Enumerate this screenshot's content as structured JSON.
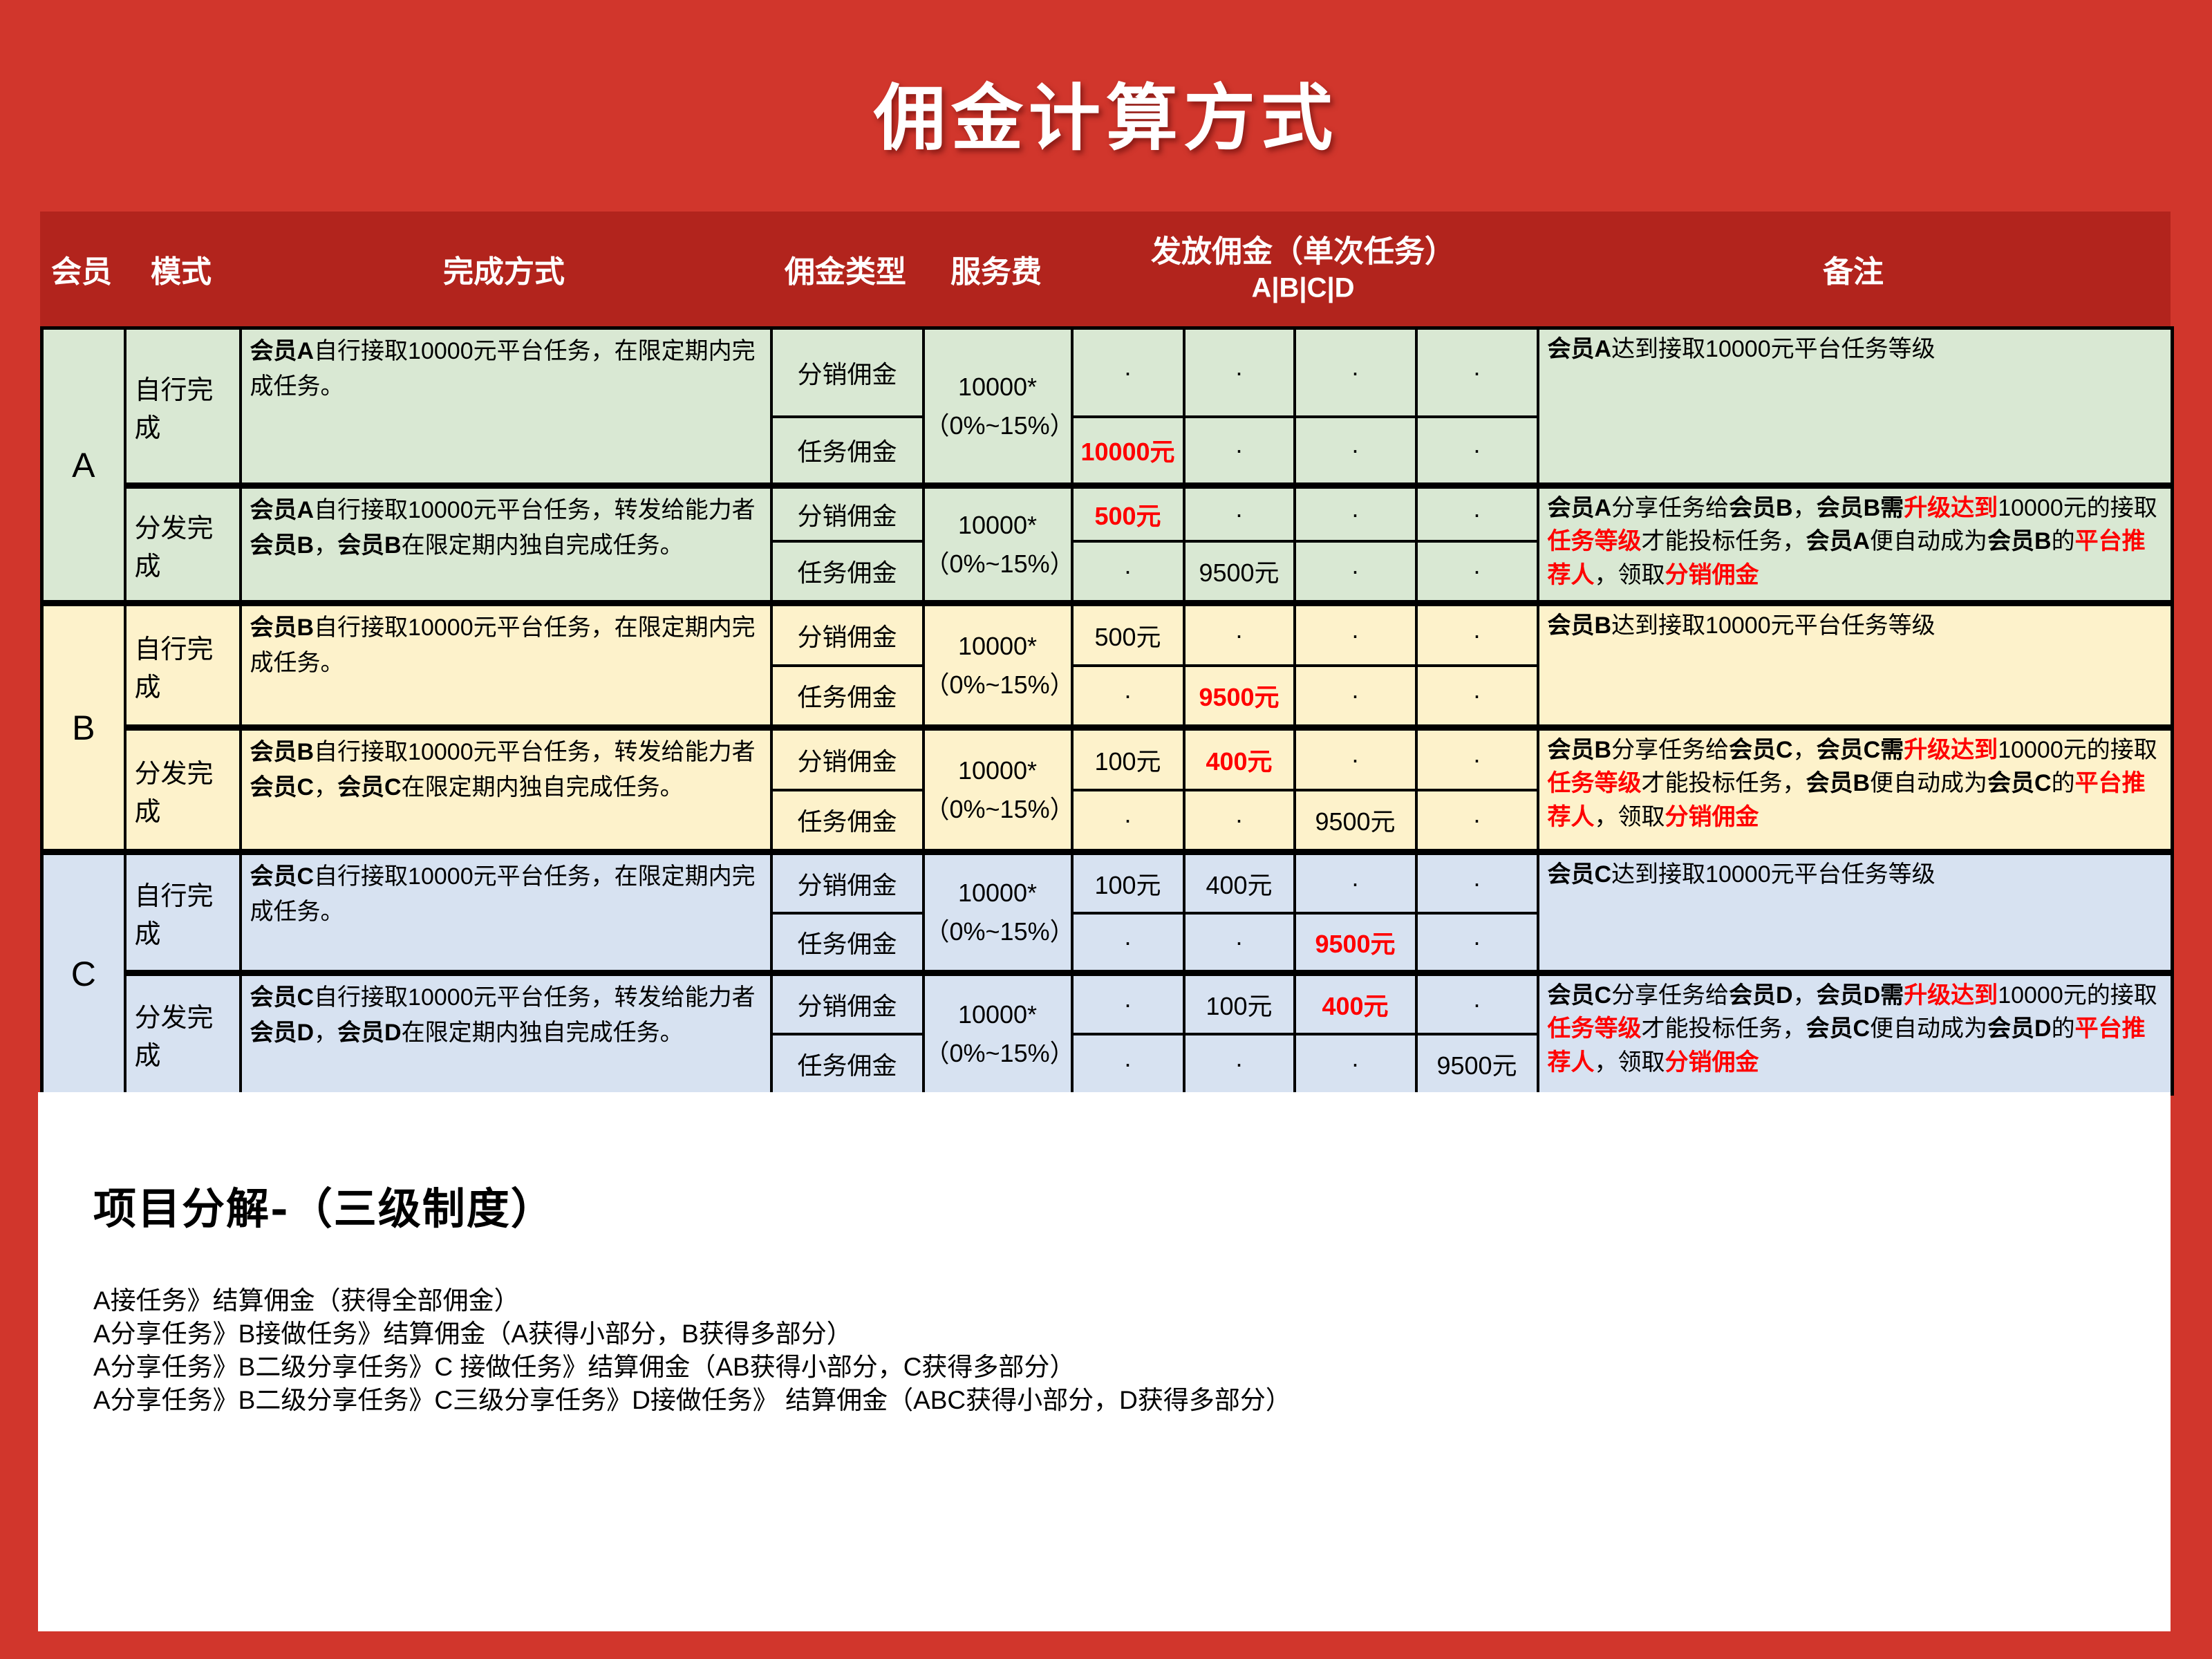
{
  "title": "佣金计算方式",
  "colors": {
    "page_bg": "#d1362c",
    "header_band": "#b2241d",
    "section_a": "#d9e8d3",
    "section_b": "#fdf2cb",
    "section_c": "#d7e2f1",
    "highlight": "#ff0000",
    "panel_bg": "#ffffff",
    "border": "#000000",
    "header_text": "#ffffff"
  },
  "header": {
    "member": "会员",
    "mode": "模式",
    "method": "完成方式",
    "ctype": "佣金类型",
    "fee": "服务费",
    "payout_line1": "发放佣金（单次任务）",
    "payout_line2": "A|B|C|D",
    "remark": "备注"
  },
  "sections": [
    {
      "member": "A",
      "blocks": [
        {
          "mode": "自行完成",
          "desc": [
            {
              "t": "会员A",
              "b": 1
            },
            {
              "t": "自行接取10000元平台任务，在限定期内完成任务。"
            }
          ],
          "fee": "10000*\n（0%~15%）",
          "rows": [
            {
              "ctype": "分销佣金",
              "vals": [
                [
                  {
                    "t": "·"
                  }
                ],
                [
                  {
                    "t": "·"
                  }
                ],
                [
                  {
                    "t": "·"
                  }
                ],
                [
                  {
                    "t": "·"
                  }
                ]
              ]
            },
            {
              "ctype": "任务佣金",
              "vals": [
                [
                  {
                    "t": "10000元",
                    "r": 1
                  }
                ],
                [
                  {
                    "t": "·"
                  }
                ],
                [
                  {
                    "t": "·"
                  }
                ],
                [
                  {
                    "t": "·"
                  }
                ]
              ]
            }
          ],
          "remark": [
            {
              "t": "会员A",
              "b": 1
            },
            {
              "t": "达到接取10000元平台任务等级"
            }
          ]
        },
        {
          "mode": "分发完成",
          "desc": [
            {
              "t": "会员A",
              "b": 1
            },
            {
              "t": "自行接取10000元平台任务，转发给能力者"
            },
            {
              "t": "会员B",
              "b": 1
            },
            {
              "t": "，"
            },
            {
              "t": "会员B",
              "b": 1
            },
            {
              "t": "在限定期内独自完成任务。"
            }
          ],
          "fee": "10000*\n（0%~15%）",
          "rows": [
            {
              "ctype": "分销佣金",
              "vals": [
                [
                  {
                    "t": "500元",
                    "r": 1
                  }
                ],
                [
                  {
                    "t": "·"
                  }
                ],
                [
                  {
                    "t": "·"
                  }
                ],
                [
                  {
                    "t": "·"
                  }
                ]
              ]
            },
            {
              "ctype": "任务佣金",
              "vals": [
                [
                  {
                    "t": "·"
                  }
                ],
                [
                  {
                    "t": "9500元"
                  }
                ],
                [
                  {
                    "t": "·"
                  }
                ],
                [
                  {
                    "t": "·"
                  }
                ]
              ]
            }
          ],
          "remark": [
            {
              "t": "会员A",
              "b": 1
            },
            {
              "t": "分享任务给"
            },
            {
              "t": "会员B",
              "b": 1
            },
            {
              "t": "，"
            },
            {
              "t": "会员B需",
              "b": 1
            },
            {
              "t": "升级达到",
              "b": 1,
              "r": 1
            },
            {
              "t": "10000元的接取"
            },
            {
              "t": "任务等级",
              "b": 1,
              "r": 1
            },
            {
              "t": "才能投标任务，"
            },
            {
              "t": "会员A",
              "b": 1
            },
            {
              "t": "便自动成为"
            },
            {
              "t": "会员B",
              "b": 1
            },
            {
              "t": "的"
            },
            {
              "t": "平台推荐人",
              "b": 1,
              "r": 1
            },
            {
              "t": "，领取"
            },
            {
              "t": "分销佣金",
              "b": 1,
              "r": 1
            }
          ]
        }
      ]
    },
    {
      "member": "B",
      "blocks": [
        {
          "mode": "自行完成",
          "desc": [
            {
              "t": "会员B",
              "b": 1
            },
            {
              "t": "自行接取10000元平台任务，在限定期内完成任务。"
            }
          ],
          "fee": "10000*\n（0%~15%）",
          "rows": [
            {
              "ctype": "分销佣金",
              "vals": [
                [
                  {
                    "t": "500元"
                  }
                ],
                [
                  {
                    "t": "·"
                  }
                ],
                [
                  {
                    "t": "·"
                  }
                ],
                [
                  {
                    "t": "·"
                  }
                ]
              ]
            },
            {
              "ctype": "任务佣金",
              "vals": [
                [
                  {
                    "t": "·"
                  }
                ],
                [
                  {
                    "t": "9500元",
                    "r": 1
                  }
                ],
                [
                  {
                    "t": "·"
                  }
                ],
                [
                  {
                    "t": "·"
                  }
                ]
              ]
            }
          ],
          "remark": [
            {
              "t": "会员B",
              "b": 1
            },
            {
              "t": "达到接取10000元平台任务等级"
            }
          ]
        },
        {
          "mode": "分发完成",
          "desc": [
            {
              "t": "会员B",
              "b": 1
            },
            {
              "t": "自行接取10000元平台任务，转发给能力者"
            },
            {
              "t": "会员C",
              "b": 1
            },
            {
              "t": "，"
            },
            {
              "t": "会员C",
              "b": 1
            },
            {
              "t": "在限定期内独自完成任务。"
            }
          ],
          "fee": "10000*\n（0%~15%）",
          "rows": [
            {
              "ctype": "分销佣金",
              "vals": [
                [
                  {
                    "t": "100元"
                  }
                ],
                [
                  {
                    "t": "400元",
                    "r": 1
                  }
                ],
                [
                  {
                    "t": "·"
                  }
                ],
                [
                  {
                    "t": "·"
                  }
                ]
              ]
            },
            {
              "ctype": "任务佣金",
              "vals": [
                [
                  {
                    "t": "·"
                  }
                ],
                [
                  {
                    "t": "·"
                  }
                ],
                [
                  {
                    "t": "9500元"
                  }
                ],
                [
                  {
                    "t": "·"
                  }
                ]
              ]
            }
          ],
          "remark": [
            {
              "t": "会员B",
              "b": 1
            },
            {
              "t": "分享任务给"
            },
            {
              "t": "会员C",
              "b": 1
            },
            {
              "t": "，"
            },
            {
              "t": "会员C需",
              "b": 1
            },
            {
              "t": "升级达到",
              "b": 1,
              "r": 1
            },
            {
              "t": "10000元的接取"
            },
            {
              "t": "任务等级",
              "b": 1,
              "r": 1
            },
            {
              "t": "才能投标任务，"
            },
            {
              "t": "会员B",
              "b": 1
            },
            {
              "t": "便自动成为"
            },
            {
              "t": "会员C",
              "b": 1
            },
            {
              "t": "的"
            },
            {
              "t": "平台推荐人",
              "b": 1,
              "r": 1
            },
            {
              "t": "，领取"
            },
            {
              "t": "分销佣金",
              "b": 1,
              "r": 1
            }
          ]
        }
      ]
    },
    {
      "member": "C",
      "blocks": [
        {
          "mode": "自行完成",
          "desc": [
            {
              "t": "会员C",
              "b": 1
            },
            {
              "t": "自行接取10000元平台任务，在限定期内完成任务。"
            }
          ],
          "fee": "10000*\n（0%~15%）",
          "rows": [
            {
              "ctype": "分销佣金",
              "vals": [
                [
                  {
                    "t": "100元"
                  }
                ],
                [
                  {
                    "t": "400元"
                  }
                ],
                [
                  {
                    "t": "·"
                  }
                ],
                [
                  {
                    "t": "·"
                  }
                ]
              ]
            },
            {
              "ctype": "任务佣金",
              "vals": [
                [
                  {
                    "t": "·"
                  }
                ],
                [
                  {
                    "t": "·"
                  }
                ],
                [
                  {
                    "t": "9500元",
                    "r": 1
                  }
                ],
                [
                  {
                    "t": "·"
                  }
                ]
              ]
            }
          ],
          "remark": [
            {
              "t": "会员C",
              "b": 1
            },
            {
              "t": "达到接取10000元平台任务等级"
            }
          ]
        },
        {
          "mode": "分发完成",
          "desc": [
            {
              "t": "会员C",
              "b": 1
            },
            {
              "t": "自行接取10000元平台任务，转发给能力者"
            },
            {
              "t": "会员D",
              "b": 1
            },
            {
              "t": "，"
            },
            {
              "t": "会员D",
              "b": 1
            },
            {
              "t": "在限定期内独自完成任务。"
            }
          ],
          "fee": "10000*\n（0%~15%）",
          "rows": [
            {
              "ctype": "分销佣金",
              "vals": [
                [
                  {
                    "t": "·"
                  }
                ],
                [
                  {
                    "t": "100元"
                  }
                ],
                [
                  {
                    "t": "400元",
                    "r": 1
                  }
                ],
                [
                  {
                    "t": "·"
                  }
                ]
              ]
            },
            {
              "ctype": "任务佣金",
              "vals": [
                [
                  {
                    "t": "·"
                  }
                ],
                [
                  {
                    "t": "·"
                  }
                ],
                [
                  {
                    "t": "·"
                  }
                ],
                [
                  {
                    "t": "9500元"
                  }
                ]
              ]
            }
          ],
          "remark": [
            {
              "t": "会员C",
              "b": 1
            },
            {
              "t": "分享任务给"
            },
            {
              "t": "会员D",
              "b": 1
            },
            {
              "t": "，"
            },
            {
              "t": "会员D需",
              "b": 1
            },
            {
              "t": "升级达到",
              "b": 1,
              "r": 1
            },
            {
              "t": "10000元的接取"
            },
            {
              "t": "任务等级",
              "b": 1,
              "r": 1
            },
            {
              "t": "才能投标任务，"
            },
            {
              "t": "会员C",
              "b": 1
            },
            {
              "t": "便自动成为"
            },
            {
              "t": "会员D",
              "b": 1
            },
            {
              "t": "的"
            },
            {
              "t": "平台推荐人",
              "b": 1,
              "r": 1
            },
            {
              "t": "，领取"
            },
            {
              "t": "分销佣金",
              "b": 1,
              "r": 1
            }
          ]
        }
      ]
    }
  ],
  "footer": {
    "heading": "项目分解-（三级制度）",
    "lines": [
      "A接任务》结算佣金（获得全部佣金）",
      "A分享任务》B接做任务》结算佣金（A获得小部分，B获得多部分）",
      "A分享任务》B二级分享任务》C 接做任务》结算佣金（AB获得小部分，C获得多部分）",
      "A分享任务》B二级分享任务》C三级分享任务》D接做任务》 结算佣金（ABC获得小部分，D获得多部分）"
    ]
  }
}
